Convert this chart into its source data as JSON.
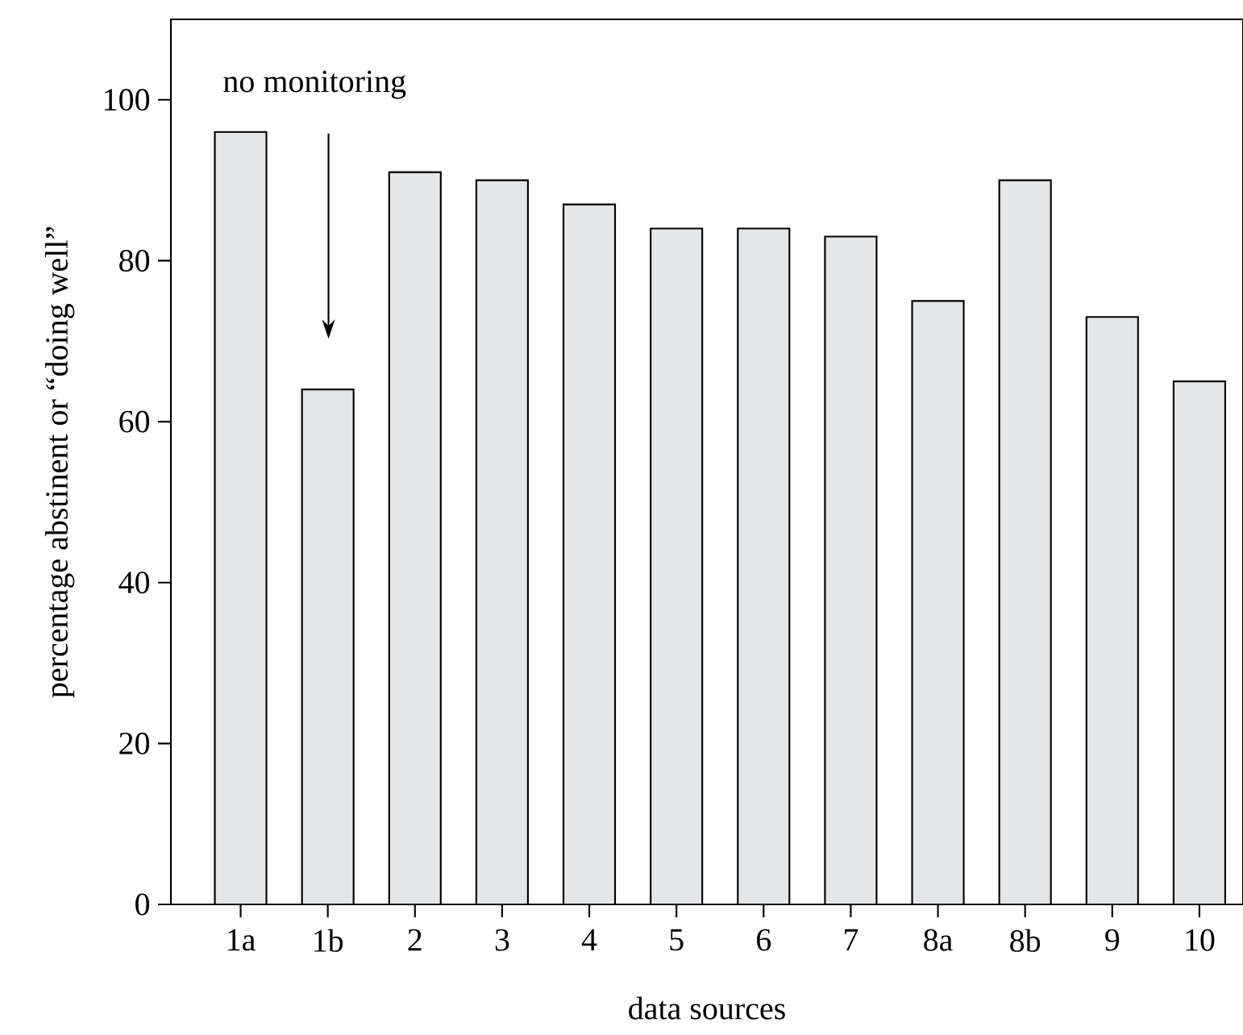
{
  "chart_data": {
    "type": "bar",
    "xlabel": "data sources",
    "ylabel": "percentage abstinent or “doing well”",
    "categories": [
      "1a",
      "1b",
      "2",
      "3",
      "4",
      "5",
      "6",
      "7",
      "8a",
      "8b",
      "9",
      "10"
    ],
    "values": [
      96,
      64,
      91,
      90,
      87,
      84,
      84,
      83,
      75,
      90,
      73,
      65
    ],
    "color": "#e5e6e8",
    "ylim": [
      0,
      110
    ],
    "yticks": [
      0,
      20,
      40,
      60,
      80,
      100
    ],
    "grid": false,
    "annotations": [
      "no monitoring"
    ]
  }
}
